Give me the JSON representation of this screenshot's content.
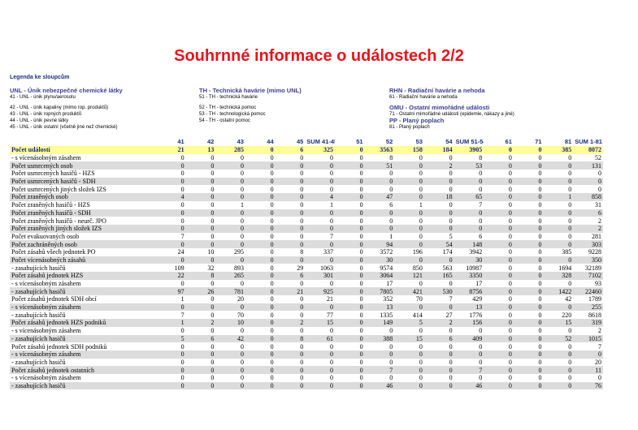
{
  "title": "Souhrnné informace o událostech 2/2",
  "legend_heading": "Legenda ke sloupcům",
  "legend": {
    "unl": {
      "heading": "UNL - Únik nebezpečné chemické látky",
      "items": [
        "41 - UNL - únik plynu/aerosolu",
        "42 - UNL - únik kapaliny (mimo rop. produktů)",
        "43 - UNL - únik ropných produktů",
        "44 - UNL - únik pevné látky",
        "45 - UNL - únik ostatní (včetně jiné než chemické)"
      ]
    },
    "th": {
      "heading": "TH - Technická havárie (mimo UNL)",
      "items": [
        "51 - TH - technická havárie",
        "52 - TH - technická pomoc",
        "53 - TH - technologická pomoc",
        "54 - TH - ostatní pomoc"
      ]
    },
    "rhn": {
      "heading": "RHN - Radiační havárie a nehoda",
      "items": [
        "61 - Radiační havárie a nehoda"
      ]
    },
    "omu": {
      "heading": "OMU - Ostatní mimořádné události",
      "items": [
        "71 - Ostatní mimořádné události (epidemie, nákazy a jiné)"
      ]
    },
    "pp": {
      "heading": "PP - Planý poplach",
      "items": [
        "81 - Planý poplach"
      ]
    }
  },
  "table": {
    "columns": [
      "41",
      "42",
      "43",
      "44",
      "45",
      "SUM 41-45",
      "51",
      "52",
      "53",
      "54",
      "SUM 51-54",
      "61",
      "71",
      "81",
      "SUM 1-81"
    ],
    "rows": [
      {
        "label": "Počet událostí",
        "values": [
          "21",
          "13",
          "285",
          "0",
          "6",
          "325",
          "0",
          "3563",
          "158",
          "184",
          "3905",
          "0",
          "0",
          "385",
          "8072"
        ]
      },
      {
        "label": "- s vícenásobným zásahem",
        "values": [
          "0",
          "0",
          "0",
          "0",
          "0",
          "0",
          "0",
          "8",
          "0",
          "0",
          "8",
          "0",
          "0",
          "0",
          "52"
        ]
      },
      {
        "label": "Počet usmrcených osob",
        "values": [
          "0",
          "0",
          "0",
          "0",
          "0",
          "0",
          "0",
          "51",
          "0",
          "2",
          "53",
          "0",
          "0",
          "0",
          "131"
        ]
      },
      {
        "label": "Počet usmrcených hasičů - HZS",
        "values": [
          "0",
          "0",
          "0",
          "0",
          "0",
          "0",
          "0",
          "0",
          "0",
          "0",
          "0",
          "0",
          "0",
          "0",
          "0"
        ]
      },
      {
        "label": "Počet usmrcených hasičů - SDH",
        "values": [
          "0",
          "0",
          "0",
          "0",
          "0",
          "0",
          "0",
          "0",
          "0",
          "0",
          "0",
          "0",
          "0",
          "0",
          "0"
        ]
      },
      {
        "label": "Počet usmrcených jiných složek IZS",
        "values": [
          "0",
          "0",
          "0",
          "0",
          "0",
          "0",
          "0",
          "0",
          "0",
          "0",
          "0",
          "0",
          "0",
          "0",
          "0"
        ]
      },
      {
        "label": "Počet zraněných osob",
        "values": [
          "4",
          "0",
          "0",
          "0",
          "0",
          "4",
          "0",
          "47",
          "0",
          "18",
          "65",
          "0",
          "0",
          "1",
          "858"
        ]
      },
      {
        "label": "Počet zraněných hasičů - HZS",
        "values": [
          "0",
          "0",
          "1",
          "0",
          "0",
          "1",
          "0",
          "6",
          "1",
          "0",
          "7",
          "0",
          "0",
          "0",
          "31"
        ]
      },
      {
        "label": "Počet zraněných hasičů - SDH",
        "values": [
          "0",
          "0",
          "0",
          "0",
          "0",
          "0",
          "0",
          "0",
          "0",
          "0",
          "0",
          "0",
          "0",
          "0",
          "6"
        ]
      },
      {
        "label": "Počet zraněných hasičů - neurč. JPO",
        "values": [
          "0",
          "0",
          "0",
          "0",
          "0",
          "0",
          "0",
          "0",
          "0",
          "0",
          "0",
          "0",
          "0",
          "0",
          "2"
        ]
      },
      {
        "label": "Počet zraněných jiných složek IZS",
        "values": [
          "0",
          "0",
          "0",
          "0",
          "0",
          "0",
          "0",
          "0",
          "0",
          "0",
          "0",
          "0",
          "0",
          "0",
          "2"
        ]
      },
      {
        "label": "Počet evakuovaných osob",
        "values": [
          "7",
          "0",
          "0",
          "0",
          "0",
          "7",
          "0",
          "1",
          "0",
          "5",
          "6",
          "0",
          "0",
          "0",
          "281"
        ]
      },
      {
        "label": "Počet zachráněných osob",
        "values": [
          "0",
          "0",
          "0",
          "0",
          "0",
          "0",
          "0",
          "94",
          "0",
          "54",
          "148",
          "0",
          "0",
          "0",
          "303"
        ]
      },
      {
        "label": "Počet zásahů všech jednotek PO",
        "values": [
          "24",
          "10",
          "295",
          "0",
          "8",
          "337",
          "0",
          "3572",
          "196",
          "174",
          "3942",
          "0",
          "0",
          "385",
          "9228"
        ]
      },
      {
        "label": "Počet vícenásobných zásahů",
        "values": [
          "0",
          "0",
          "0",
          "0",
          "0",
          "0",
          "0",
          "30",
          "0",
          "0",
          "30",
          "0",
          "0",
          "0",
          "350"
        ]
      },
      {
        "label": "- zasahujících hasičů",
        "values": [
          "109",
          "32",
          "893",
          "0",
          "29",
          "1063",
          "0",
          "9574",
          "850",
          "563",
          "10987",
          "0",
          "0",
          "1694",
          "32189"
        ]
      },
      {
        "label": "Počet zásahů jednotek HZS",
        "values": [
          "22",
          "8",
          "265",
          "0",
          "6",
          "301",
          "0",
          "3064",
          "121",
          "165",
          "3350",
          "0",
          "0",
          "328",
          "7102"
        ]
      },
      {
        "label": "- s vícenásobným zásahem",
        "values": [
          "0",
          "0",
          "0",
          "0",
          "0",
          "0",
          "0",
          "17",
          "0",
          "0",
          "17",
          "0",
          "0",
          "0",
          "93"
        ]
      },
      {
        "label": "- zasahujících hasičů",
        "values": [
          "97",
          "26",
          "781",
          "0",
          "21",
          "925",
          "0",
          "7805",
          "421",
          "530",
          "8756",
          "0",
          "0",
          "1422",
          "22460"
        ]
      },
      {
        "label": "Počet zásahů jednotek SDH obcí",
        "values": [
          "1",
          "0",
          "20",
          "0",
          "0",
          "21",
          "0",
          "352",
          "70",
          "7",
          "429",
          "0",
          "0",
          "42",
          "1789"
        ]
      },
      {
        "label": "- s vícenásobným zásahem",
        "values": [
          "0",
          "0",
          "0",
          "0",
          "0",
          "0",
          "0",
          "13",
          "0",
          "0",
          "13",
          "0",
          "0",
          "0",
          "255"
        ]
      },
      {
        "label": "- zasahujících hasičů",
        "values": [
          "7",
          "0",
          "70",
          "0",
          "0",
          "77",
          "0",
          "1335",
          "414",
          "27",
          "1776",
          "0",
          "0",
          "220",
          "8618"
        ]
      },
      {
        "label": "Počet zásahů jednotek HZS podniků",
        "values": [
          "1",
          "2",
          "10",
          "0",
          "2",
          "15",
          "0",
          "149",
          "5",
          "2",
          "156",
          "0",
          "0",
          "15",
          "319"
        ]
      },
      {
        "label": "- s vícenásobným zásahem",
        "values": [
          "0",
          "0",
          "0",
          "0",
          "0",
          "0",
          "0",
          "0",
          "0",
          "0",
          "0",
          "0",
          "0",
          "0",
          "2"
        ]
      },
      {
        "label": "- zasahujících hasičů",
        "values": [
          "5",
          "6",
          "42",
          "0",
          "8",
          "61",
          "0",
          "388",
          "15",
          "6",
          "409",
          "0",
          "0",
          "52",
          "1015"
        ]
      },
      {
        "label": "Počet zásahů jednotek SDH podniků",
        "values": [
          "0",
          "0",
          "0",
          "0",
          "0",
          "0",
          "0",
          "0",
          "0",
          "0",
          "0",
          "0",
          "0",
          "0",
          "7"
        ]
      },
      {
        "label": "- s vícenásobným zásahem",
        "values": [
          "0",
          "0",
          "0",
          "0",
          "0",
          "0",
          "0",
          "0",
          "0",
          "0",
          "0",
          "0",
          "0",
          "0",
          "0"
        ]
      },
      {
        "label": "- zasahujících hasičů",
        "values": [
          "0",
          "0",
          "0",
          "0",
          "0",
          "0",
          "0",
          "0",
          "0",
          "0",
          "0",
          "0",
          "0",
          "0",
          "20"
        ]
      },
      {
        "label": "Počet zásahů jednotek ostatních",
        "values": [
          "0",
          "0",
          "0",
          "0",
          "0",
          "0",
          "0",
          "7",
          "0",
          "0",
          "7",
          "0",
          "0",
          "0",
          "11"
        ]
      },
      {
        "label": "- s vícenásobným zásahem",
        "values": [
          "0",
          "0",
          "0",
          "0",
          "0",
          "0",
          "0",
          "0",
          "0",
          "0",
          "0",
          "0",
          "0",
          "0",
          "0"
        ]
      },
      {
        "label": "- zasahujících hasičů",
        "values": [
          "0",
          "0",
          "0",
          "0",
          "0",
          "0",
          "0",
          "46",
          "0",
          "0",
          "46",
          "0",
          "0",
          "0",
          "76"
        ]
      }
    ]
  }
}
